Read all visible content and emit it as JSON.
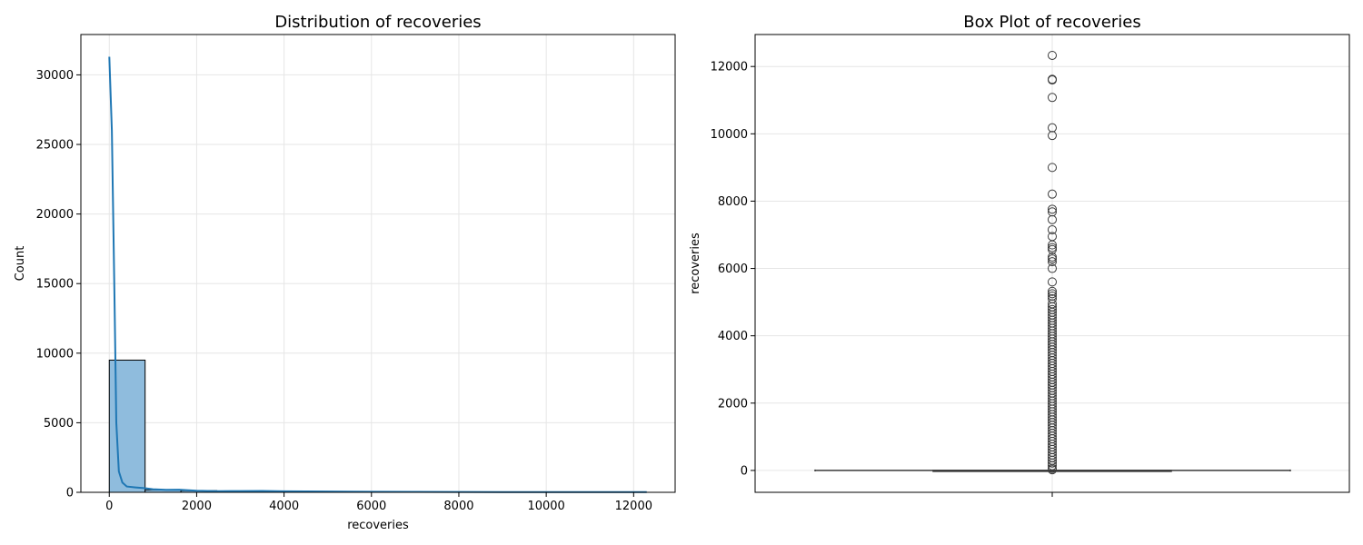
{
  "chart_data": [
    {
      "type": "bar",
      "title": "Distribution of recoveries",
      "xlabel": "recoveries",
      "ylabel": "Count",
      "xlim": [
        -650,
        12950
      ],
      "ylim": [
        0,
        32900
      ],
      "xticks": [
        0,
        2000,
        4000,
        6000,
        8000,
        10000,
        12000
      ],
      "yticks": [
        0,
        5000,
        10000,
        15000,
        20000,
        25000,
        30000
      ],
      "grid": true,
      "bar_color": "#8fbcdd",
      "kde_color": "#1f77b4",
      "bins": [
        {
          "x0": 0,
          "x1": 820,
          "count": 9500
        },
        {
          "x0": 820,
          "x1": 1640,
          "count": 180
        },
        {
          "x0": 1640,
          "x1": 2460,
          "count": 120
        },
        {
          "x0": 2460,
          "x1": 3280,
          "count": 70
        },
        {
          "x0": 3280,
          "x1": 4100,
          "count": 45
        },
        {
          "x0": 4100,
          "x1": 4920,
          "count": 25
        },
        {
          "x0": 4920,
          "x1": 5740,
          "count": 15
        },
        {
          "x0": 5740,
          "x1": 6560,
          "count": 10
        },
        {
          "x0": 6560,
          "x1": 7380,
          "count": 6
        },
        {
          "x0": 7380,
          "x1": 8200,
          "count": 4
        },
        {
          "x0": 8200,
          "x1": 9020,
          "count": 3
        },
        {
          "x0": 9020,
          "x1": 9840,
          "count": 2
        },
        {
          "x0": 9840,
          "x1": 10660,
          "count": 2
        },
        {
          "x0": 10660,
          "x1": 11480,
          "count": 2
        },
        {
          "x0": 11480,
          "x1": 12300,
          "count": 3
        }
      ],
      "kde": {
        "x": [
          0,
          60,
          120,
          160,
          220,
          300,
          400,
          600,
          800,
          1000,
          1300,
          1600,
          2000,
          2500,
          3000,
          3500,
          4000,
          5000,
          6000,
          7000,
          8000,
          9000,
          10000,
          11000,
          12300
        ],
        "y": [
          31300,
          26000,
          14000,
          5000,
          1500,
          700,
          420,
          350,
          300,
          220,
          180,
          190,
          120,
          80,
          90,
          100,
          70,
          60,
          40,
          30,
          25,
          20,
          15,
          12,
          10
        ]
      }
    },
    {
      "type": "box",
      "title": "Box Plot of recoveries",
      "ylabel": "recoveries",
      "ylim": [
        -650,
        12950
      ],
      "yticks": [
        0,
        2000,
        4000,
        6000,
        8000,
        10000,
        12000
      ],
      "grid": true,
      "box_color": "#3a3a3a",
      "stats": {
        "q1": 0,
        "median": 0,
        "q3": 0,
        "whisker_low": 0,
        "whisker_high": 0
      },
      "outliers": [
        12330,
        11620,
        11600,
        11080,
        10180,
        9950,
        9000,
        8210,
        7760,
        7680,
        7450,
        7150,
        6950,
        6700,
        6620,
        6560,
        6340,
        6280,
        6200,
        6000,
        5600,
        5320,
        5250,
        5180,
        5100,
        4950,
        4860,
        4780,
        4700,
        4620,
        4540,
        4460,
        4380,
        4300,
        4220,
        4140,
        4060,
        3980,
        3900,
        3820,
        3740,
        3660,
        3580,
        3500,
        3420,
        3340,
        3260,
        3180,
        3100,
        3020,
        2940,
        2860,
        2780,
        2700,
        2620,
        2540,
        2460,
        2380,
        2300,
        2220,
        2140,
        2060,
        1980,
        1900,
        1820,
        1740,
        1660,
        1580,
        1500,
        1420,
        1340,
        1260,
        1180,
        1100,
        1020,
        940,
        860,
        780,
        700,
        620,
        540,
        460,
        380,
        300,
        220,
        140,
        60,
        20
      ]
    }
  ]
}
